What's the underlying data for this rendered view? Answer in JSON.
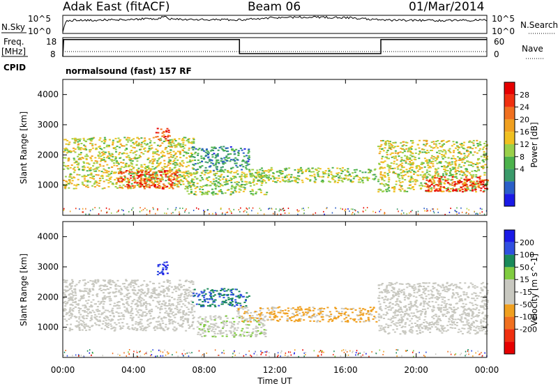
{
  "header": {
    "station": "Adak East (fitACF)",
    "beam": "Beam 06",
    "date": "01/Mar/2014"
  },
  "noise_panel": {
    "left_label": "N.Sky",
    "right_label": "N.Search",
    "ticks_left": [
      "10^5",
      "10^0"
    ],
    "ticks_right": [
      "10^5",
      "10^0"
    ]
  },
  "freq_panel": {
    "left_label_1": "Freq.",
    "left_label_2": "[MHz]",
    "left_ticks": [
      "18",
      "8"
    ],
    "right_label": "Nave",
    "right_ticks": [
      "60",
      "0"
    ],
    "cpid_label": "CPID",
    "mode_text": "normalsound (fast) 157 RF"
  },
  "colors": {
    "power_scale": [
      "#1a1ae6",
      "#2a5fc8",
      "#3a9a6a",
      "#4cb24c",
      "#9ad04a",
      "#f0c020",
      "#f0a020",
      "#f07020",
      "#f03010",
      "#e60000"
    ],
    "velocity_scale": [
      "#1a1ae6",
      "#3050e0",
      "#1a8a5a",
      "#80cc40",
      "#c8c8c0",
      "#c8c8c0",
      "#f0a020",
      "#f07020",
      "#f03010",
      "#e60000"
    ]
  },
  "chart_data": [
    {
      "type": "heatmap",
      "title": "Power",
      "xlabel": "Time UT",
      "ylabel": "Slant Range [km]",
      "xlim": [
        "00:00",
        "24:00"
      ],
      "x_ticks": [
        "00:00",
        "04:00",
        "08:00",
        "12:00",
        "16:00",
        "20:00",
        "00:00"
      ],
      "ylim": [
        0,
        4500
      ],
      "y_ticks": [
        1000,
        2000,
        3000,
        4000
      ],
      "colorbar": {
        "label": "Power [dB]",
        "range": [
          0,
          32
        ],
        "ticks": [
          4,
          8,
          12,
          16,
          20,
          24,
          28
        ]
      },
      "scatter_regions": [
        {
          "t_start": 0.0,
          "t_end": 7.4,
          "range_km": [
            900,
            2600
          ],
          "value_db": 16
        },
        {
          "t_start": 3.0,
          "t_end": 6.5,
          "range_km": [
            900,
            1500
          ],
          "value_db": 26
        },
        {
          "t_start": 5.2,
          "t_end": 6.0,
          "range_km": [
            2500,
            2900
          ],
          "value_db": 26
        },
        {
          "t_start": 7.0,
          "t_end": 11.5,
          "range_km": [
            700,
            1500
          ],
          "value_db": 14
        },
        {
          "t_start": 7.3,
          "t_end": 10.5,
          "range_km": [
            1500,
            2300
          ],
          "value_db": 8
        },
        {
          "t_start": 10.5,
          "t_end": 17.7,
          "range_km": [
            1100,
            1600
          ],
          "value_db": 14
        },
        {
          "t_start": 17.8,
          "t_end": 24.0,
          "range_km": [
            800,
            2500
          ],
          "value_db": 16
        },
        {
          "t_start": 20.5,
          "t_end": 24.0,
          "range_km": [
            800,
            1300
          ],
          "value_db": 28
        }
      ]
    },
    {
      "type": "heatmap",
      "title": "Velocity",
      "xlabel": "Time UT",
      "ylabel": "Slant Range [km]",
      "xlim": [
        "00:00",
        "24:00"
      ],
      "x_ticks": [
        "00:00",
        "04:00",
        "08:00",
        "12:00",
        "16:00",
        "20:00",
        "00:00"
      ],
      "ylim": [
        0,
        4500
      ],
      "y_ticks": [
        1000,
        2000,
        3000,
        4000
      ],
      "colorbar": {
        "label": "Velocity [m s^-1]",
        "range": [
          -250,
          250
        ],
        "ticks": [
          200,
          100,
          50,
          15,
          -15,
          -50,
          -100,
          -200
        ]
      },
      "scatter_regions": [
        {
          "t_start": 0.0,
          "t_end": 7.4,
          "range_km": [
            900,
            2600
          ],
          "value_ms": 0
        },
        {
          "t_start": 5.3,
          "t_end": 5.9,
          "range_km": [
            2700,
            3200
          ],
          "value_ms": 200
        },
        {
          "t_start": 7.2,
          "t_end": 10.5,
          "range_km": [
            1700,
            2300
          ],
          "value_ms": 150
        },
        {
          "t_start": 7.5,
          "t_end": 11.5,
          "range_km": [
            700,
            1400
          ],
          "value_ms": 40
        },
        {
          "t_start": 9.8,
          "t_end": 11.3,
          "range_km": [
            1200,
            1700
          ],
          "value_ms": -50
        },
        {
          "t_start": 11.5,
          "t_end": 17.7,
          "range_km": [
            1200,
            1700
          ],
          "value_ms": -60
        },
        {
          "t_start": 17.8,
          "t_end": 24.0,
          "range_km": [
            800,
            2500
          ],
          "value_ms": 0
        }
      ]
    }
  ],
  "noise_series": {
    "x_hours": [
      0,
      0.2,
      2,
      4,
      5.5,
      5.7,
      6,
      8,
      10,
      12,
      14,
      16,
      18,
      20,
      22,
      24
    ],
    "sky_level": [
      0.1,
      0.72,
      0.74,
      0.78,
      0.82,
      0.95,
      0.8,
      0.76,
      0.75,
      0.88,
      0.9,
      0.88,
      0.74,
      0.72,
      0.72,
      0.73
    ]
  },
  "freq_series": {
    "x_hours": [
      0,
      0.05,
      10,
      10,
      18,
      18,
      24
    ],
    "freq_mhz": [
      8,
      17,
      17,
      9.5,
      9.5,
      17,
      17
    ]
  }
}
